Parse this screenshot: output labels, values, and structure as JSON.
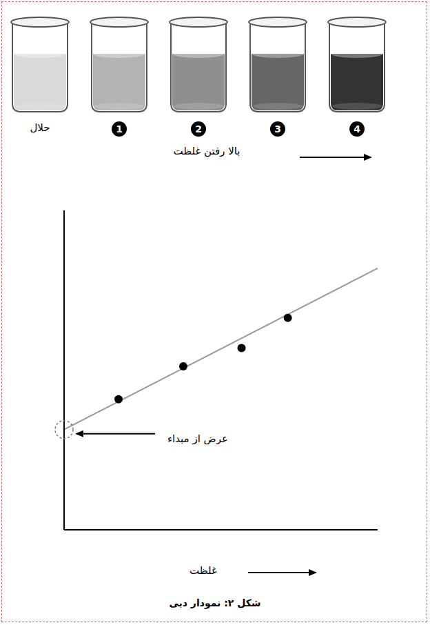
{
  "header": {
    "beakers": {
      "labels": [
        "حلال",
        1,
        2,
        3,
        4
      ],
      "colors": [
        "#d9d9d9",
        "#b3b3b3",
        "#8f8f8f",
        "#666666",
        "#333333"
      ]
    },
    "caption": "بالا رفتن غلظت"
  },
  "chart_data": {
    "type": "scatter",
    "xlabel": "غلظت",
    "xlim": [
      0.28,
      6.04
    ],
    "xticks": [
      1,
      2,
      3,
      4,
      5,
      6
    ],
    "ylim": [
      0.34,
      6.14
    ],
    "yticks": [
      1,
      2,
      3,
      4,
      5,
      6
    ],
    "tick_labels": false,
    "grid": false,
    "series": [
      {
        "type": "scatter",
        "x": [
          1.28,
          2.47,
          3.54,
          4.39
        ],
        "values": [
          2.71,
          3.31,
          3.64,
          4.19
        ],
        "color": "#000000",
        "marker": "circle"
      },
      {
        "type": "line",
        "x": [
          0.28,
          6.04
        ],
        "values": [
          2.16,
          5.09
        ],
        "color": "#999999",
        "line_style": "solid"
      }
    ],
    "annotations": [
      {
        "text": "عرض از مبداء",
        "x": 0.28,
        "y": 2.16
      }
    ]
  },
  "figure_caption": "شکل ۲: نمودار دبی"
}
